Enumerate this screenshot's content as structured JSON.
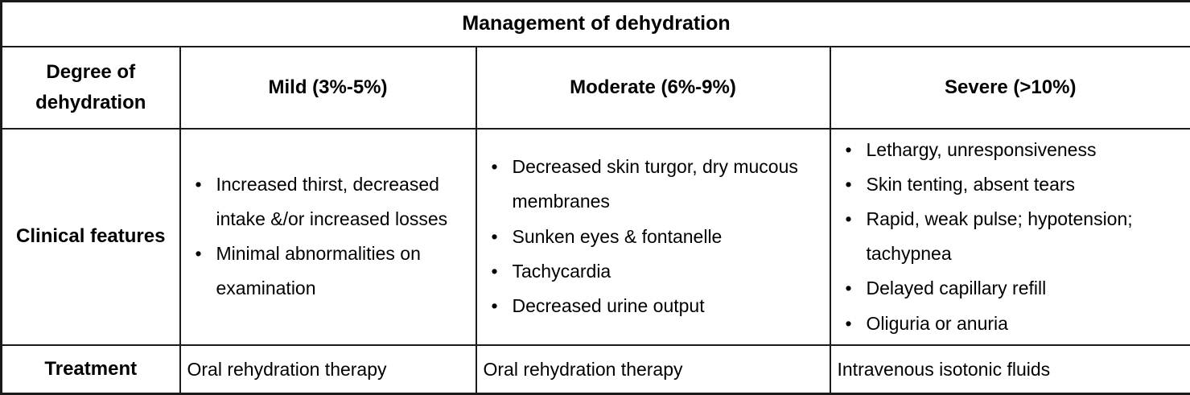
{
  "table": {
    "title": "Management of dehydration",
    "header": {
      "row_label": "Degree of dehydration",
      "mild": "Mild (3%-5%)",
      "moderate": "Moderate (6%-9%)",
      "severe": "Severe (>10%)"
    },
    "clinical_features": {
      "row_label": "Clinical features",
      "mild": [
        "Increased thirst, decreased intake &/or increased losses",
        "Minimal abnormalities on examination"
      ],
      "moderate": [
        "Decreased skin turgor, dry mucous membranes",
        "Sunken eyes & fontanelle",
        "Tachycardia",
        "Decreased urine output"
      ],
      "severe": [
        "Lethargy, unresponsiveness",
        "Skin tenting, absent tears",
        "Rapid, weak pulse; hypotension; tachypnea",
        "Delayed capillary refill",
        "Oliguria or anuria"
      ]
    },
    "treatment": {
      "row_label": "Treatment",
      "mild": "Oral rehydration therapy",
      "moderate": "Oral rehydration therapy",
      "severe": "Intravenous isotonic fluids"
    }
  }
}
